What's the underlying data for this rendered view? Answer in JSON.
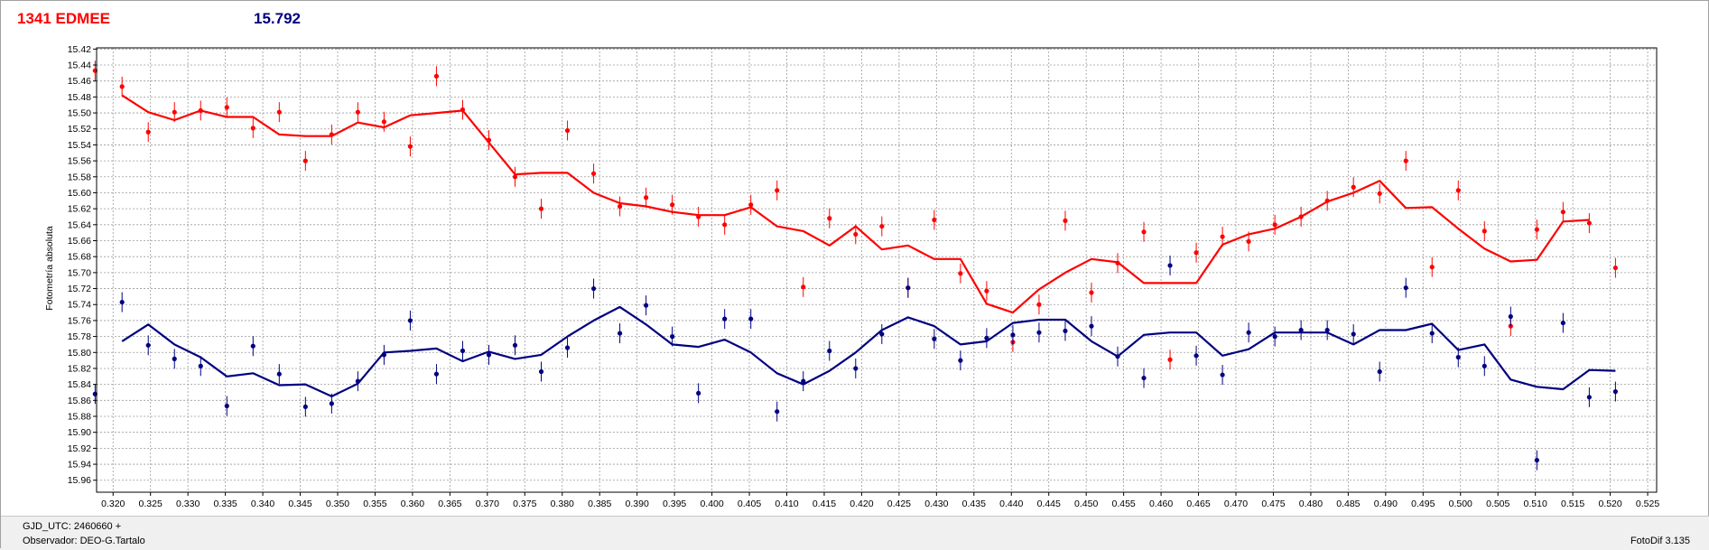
{
  "header": {
    "star_name": "1341 EDMEE",
    "value": "15.792"
  },
  "status": {
    "gjd": "GJD_UTC: 2460660 +",
    "observer": "Observador: DEO-G.Tartalo",
    "app": "FotoDif 3.135"
  },
  "colors": {
    "series1": "#ff0000",
    "series2": "#000080",
    "grid": "#9a9a9a"
  },
  "chart_data": {
    "type": "scatter",
    "ylabel": "Fotometría absoluta",
    "xlim": [
      0.3178,
      0.5262
    ],
    "ylim": [
      15.975,
      15.4185
    ],
    "y_reversed": true,
    "grid": true,
    "xticks": [
      "0.320",
      "0.325",
      "0.330",
      "0.335",
      "0.340",
      "0.345",
      "0.350",
      "0.355",
      "0.360",
      "0.365",
      "0.370",
      "0.375",
      "0.380",
      "0.385",
      "0.390",
      "0.395",
      "0.400",
      "0.405",
      "0.410",
      "0.415",
      "0.420",
      "0.425",
      "0.430",
      "0.435",
      "0.440",
      "0.445",
      "0.450",
      "0.455",
      "0.460",
      "0.465",
      "0.470",
      "0.475",
      "0.480",
      "0.485",
      "0.490",
      "0.495",
      "0.500",
      "0.505",
      "0.510",
      "0.515",
      "0.520",
      "0.525"
    ],
    "yticks": [
      "15.42",
      "15.44",
      "15.46",
      "15.48",
      "15.50",
      "15.52",
      "15.54",
      "15.56",
      "15.58",
      "15.60",
      "15.62",
      "15.64",
      "15.66",
      "15.68",
      "15.70",
      "15.72",
      "15.74",
      "15.76",
      "15.78",
      "15.80",
      "15.82",
      "15.84",
      "15.86",
      "15.88",
      "15.90",
      "15.92",
      "15.94",
      "15.96"
    ],
    "series": [
      {
        "color": "#ff0000",
        "points": [
          [
            0.3176,
            15.447
          ],
          [
            0.3212,
            15.467
          ],
          [
            0.3247,
            15.524
          ],
          [
            0.3282,
            15.499
          ],
          [
            0.3317,
            15.497
          ],
          [
            0.3352,
            15.493
          ],
          [
            0.3387,
            15.519
          ],
          [
            0.3422,
            15.499
          ],
          [
            0.3457,
            15.56
          ],
          [
            0.3492,
            15.527
          ],
          [
            0.3527,
            15.499
          ],
          [
            0.3562,
            15.511
          ],
          [
            0.3597,
            15.542
          ],
          [
            0.3632,
            15.454
          ],
          [
            0.3667,
            15.496
          ],
          [
            0.3702,
            15.534
          ],
          [
            0.3737,
            15.58
          ],
          [
            0.3772,
            15.62
          ],
          [
            0.3807,
            15.522
          ],
          [
            0.3842,
            15.576
          ],
          [
            0.3877,
            15.617
          ],
          [
            0.3912,
            15.606
          ],
          [
            0.3947,
            15.615
          ],
          [
            0.3982,
            15.63
          ],
          [
            0.4017,
            15.64
          ],
          [
            0.4052,
            15.615
          ],
          [
            0.4087,
            15.597
          ],
          [
            0.4122,
            15.718
          ],
          [
            0.4157,
            15.632
          ],
          [
            0.4192,
            15.652
          ],
          [
            0.4227,
            15.642
          ],
          [
            0.4262,
            15.719
          ],
          [
            0.4297,
            15.634
          ],
          [
            0.4332,
            15.701
          ],
          [
            0.4367,
            15.723
          ],
          [
            0.4402,
            15.787
          ],
          [
            0.4437,
            15.74
          ],
          [
            0.4472,
            15.635
          ],
          [
            0.4507,
            15.725
          ],
          [
            0.4542,
            15.688
          ],
          [
            0.4577,
            15.649
          ],
          [
            0.4612,
            15.809
          ],
          [
            0.4647,
            15.675
          ],
          [
            0.4682,
            15.655
          ],
          [
            0.4717,
            15.661
          ],
          [
            0.4752,
            15.64
          ],
          [
            0.4787,
            15.63
          ],
          [
            0.4822,
            15.61
          ],
          [
            0.4857,
            15.593
          ],
          [
            0.4892,
            15.601
          ],
          [
            0.4927,
            15.56
          ],
          [
            0.4962,
            15.693
          ],
          [
            0.4997,
            15.597
          ],
          [
            0.5032,
            15.648
          ],
          [
            0.5067,
            15.767
          ],
          [
            0.5102,
            15.646
          ],
          [
            0.5137,
            15.624
          ],
          [
            0.5172,
            15.638
          ],
          [
            0.5207,
            15.694
          ]
        ]
      },
      {
        "color": "#000080",
        "points": [
          [
            0.3176,
            15.852
          ],
          [
            0.3212,
            15.737
          ],
          [
            0.3247,
            15.791
          ],
          [
            0.3282,
            15.808
          ],
          [
            0.3317,
            15.817
          ],
          [
            0.3352,
            15.867
          ],
          [
            0.3387,
            15.792
          ],
          [
            0.3422,
            15.827
          ],
          [
            0.3457,
            15.868
          ],
          [
            0.3492,
            15.864
          ],
          [
            0.3527,
            15.836
          ],
          [
            0.3562,
            15.803
          ],
          [
            0.3597,
            15.76
          ],
          [
            0.3632,
            15.827
          ],
          [
            0.3667,
            15.798
          ],
          [
            0.3702,
            15.803
          ],
          [
            0.3737,
            15.791
          ],
          [
            0.3772,
            15.824
          ],
          [
            0.3807,
            15.794
          ],
          [
            0.3842,
            15.72
          ],
          [
            0.3877,
            15.776
          ],
          [
            0.3912,
            15.741
          ],
          [
            0.3947,
            15.78
          ],
          [
            0.3982,
            15.851
          ],
          [
            0.4017,
            15.758
          ],
          [
            0.4052,
            15.758
          ],
          [
            0.4087,
            15.874
          ],
          [
            0.4122,
            15.836
          ],
          [
            0.4157,
            15.798
          ],
          [
            0.4192,
            15.82
          ],
          [
            0.4227,
            15.777
          ],
          [
            0.4262,
            15.719
          ],
          [
            0.4297,
            15.783
          ],
          [
            0.4332,
            15.81
          ],
          [
            0.4367,
            15.782
          ],
          [
            0.4402,
            15.778
          ],
          [
            0.4437,
            15.775
          ],
          [
            0.4472,
            15.773
          ],
          [
            0.4507,
            15.767
          ],
          [
            0.4542,
            15.805
          ],
          [
            0.4577,
            15.832
          ],
          [
            0.4612,
            15.691
          ],
          [
            0.4647,
            15.804
          ],
          [
            0.4682,
            15.828
          ],
          [
            0.4717,
            15.775
          ],
          [
            0.4752,
            15.78
          ],
          [
            0.4787,
            15.772
          ],
          [
            0.4822,
            15.772
          ],
          [
            0.4857,
            15.777
          ],
          [
            0.4892,
            15.824
          ],
          [
            0.4927,
            15.719
          ],
          [
            0.4962,
            15.776
          ],
          [
            0.4997,
            15.806
          ],
          [
            0.5032,
            15.817
          ],
          [
            0.5067,
            15.755
          ],
          [
            0.5102,
            15.935
          ],
          [
            0.5137,
            15.763
          ],
          [
            0.5172,
            15.856
          ],
          [
            0.5207,
            15.849
          ]
        ]
      }
    ],
    "lines": [
      {
        "color": "#ff0000",
        "x": [
          0.3212,
          0.3247,
          0.3282,
          0.3317,
          0.3352,
          0.3387,
          0.3422,
          0.3457,
          0.3492,
          0.3527,
          0.3562,
          0.3597,
          0.3632,
          0.3667,
          0.3702,
          0.3737,
          0.3772,
          0.3807,
          0.3842,
          0.3877,
          0.3912,
          0.3947,
          0.3982,
          0.4017,
          0.4052,
          0.4087,
          0.4122,
          0.4157,
          0.4192,
          0.4227,
          0.4262,
          0.4297,
          0.4332,
          0.4367,
          0.4402,
          0.4437,
          0.4472,
          0.4507,
          0.4542,
          0.4577,
          0.4612,
          0.4647,
          0.4682,
          0.4717,
          0.4752,
          0.4787,
          0.4822,
          0.4857,
          0.4892,
          0.4927,
          0.4962,
          0.4997,
          0.5032,
          0.5067,
          0.5102,
          0.5137,
          0.5172
        ],
        "y": [
          15.478,
          15.499,
          15.509,
          15.497,
          15.505,
          15.505,
          15.527,
          15.529,
          15.529,
          15.512,
          15.518,
          15.503,
          15.5,
          15.497,
          15.537,
          15.577,
          15.575,
          15.575,
          15.6,
          15.613,
          15.617,
          15.624,
          15.628,
          15.628,
          15.618,
          15.642,
          15.648,
          15.666,
          15.642,
          15.671,
          15.666,
          15.683,
          15.683,
          15.739,
          15.75,
          15.721,
          15.7,
          15.683,
          15.687,
          15.713,
          15.713,
          15.713,
          15.665,
          15.652,
          15.645,
          15.63,
          15.611,
          15.6,
          15.585,
          15.619,
          15.618,
          15.645,
          15.67,
          15.686,
          15.684,
          15.636,
          15.634
        ]
      },
      {
        "color": "#000080",
        "x": [
          0.3212,
          0.3247,
          0.3282,
          0.3317,
          0.3352,
          0.3387,
          0.3422,
          0.3457,
          0.3492,
          0.3527,
          0.3562,
          0.3597,
          0.3632,
          0.3667,
          0.3702,
          0.3737,
          0.3772,
          0.3807,
          0.3842,
          0.3877,
          0.3912,
          0.3947,
          0.3982,
          0.4017,
          0.4052,
          0.4087,
          0.4122,
          0.4157,
          0.4192,
          0.4227,
          0.4262,
          0.4297,
          0.4332,
          0.4367,
          0.4402,
          0.4437,
          0.4472,
          0.4507,
          0.4542,
          0.4577,
          0.4612,
          0.4647,
          0.4682,
          0.4717,
          0.4752,
          0.4787,
          0.4822,
          0.4857,
          0.4892,
          0.4927,
          0.4962,
          0.4997,
          0.5032,
          0.5067,
          0.5102,
          0.5137,
          0.5172,
          0.5207
        ],
        "y": [
          15.786,
          15.765,
          15.79,
          15.806,
          15.83,
          15.826,
          15.841,
          15.84,
          15.855,
          15.839,
          15.8,
          15.798,
          15.795,
          15.811,
          15.799,
          15.808,
          15.803,
          15.78,
          15.76,
          15.743,
          15.765,
          15.79,
          15.793,
          15.784,
          15.8,
          15.826,
          15.84,
          15.823,
          15.8,
          15.772,
          15.756,
          15.767,
          15.79,
          15.786,
          15.763,
          15.759,
          15.759,
          15.786,
          15.805,
          15.778,
          15.775,
          15.775,
          15.804,
          15.796,
          15.775,
          15.775,
          15.775,
          15.79,
          15.772,
          15.772,
          15.764,
          15.797,
          15.79,
          15.834,
          15.843,
          15.846,
          15.822,
          15.823
        ]
      }
    ]
  }
}
